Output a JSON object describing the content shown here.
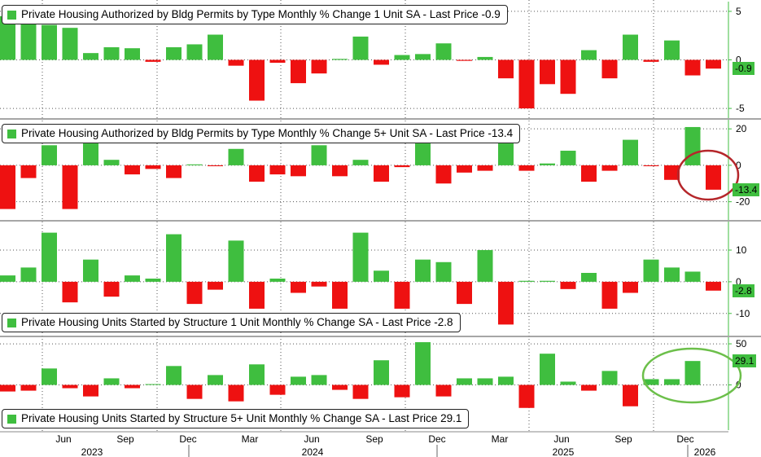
{
  "colors": {
    "positive": "#3fbe3f",
    "negative": "#ee1111",
    "axis": "#3fbe3f",
    "grid": "#555555",
    "annotation_red": "#b5262a",
    "annotation_green": "#6cbf4a"
  },
  "x_axis": {
    "month_labels": [
      "Jun",
      "Sep",
      "Dec",
      "Mar",
      "Jun",
      "Sep",
      "Dec",
      "Mar",
      "Jun",
      "Sep",
      "Dec"
    ],
    "year_labels": [
      "2023",
      "2024",
      "2025",
      "2026"
    ]
  },
  "chart_data": [
    {
      "type": "bar",
      "title": "Private Housing Authorized by Bldg Permits by Type Monthly % Change 1 Unit SA - Last Price -0.9",
      "swatch": "legend-swatch",
      "last_price_label": "-0.9",
      "last_price_value": -0.9,
      "ylim": [
        -6,
        6
      ],
      "yticks": [
        5,
        0,
        -5
      ],
      "ytick_labels": [
        "5",
        "0",
        "-5"
      ],
      "values": [
        4.5,
        4.2,
        3.6,
        3.3,
        0.7,
        1.3,
        1.2,
        -0.2,
        1.3,
        1.6,
        2.6,
        -0.6,
        -4.2,
        -0.3,
        -2.4,
        -1.4,
        0.1,
        2.4,
        -0.5,
        0.5,
        0.6,
        1.7,
        -0.1,
        0.3,
        -1.9,
        -5.0,
        -2.5,
        -3.5,
        1.0,
        -1.9,
        2.6,
        -0.2,
        2.0,
        -1.6,
        -0.9
      ]
    },
    {
      "type": "bar",
      "title": "Private Housing Authorized by Bldg Permits by Type Monthly % Change 5+ Unit SA - Last Price -13.4",
      "last_price_label": "-13.4",
      "last_price_value": -13.4,
      "ylim": [
        -30,
        25
      ],
      "yticks": [
        20,
        0,
        -20
      ],
      "ytick_labels": [
        "20",
        "0",
        "-20"
      ],
      "values": [
        -24,
        -7,
        11,
        -24,
        12,
        3,
        -5,
        -2,
        -7,
        0.5,
        -0.5,
        9,
        -9,
        -5,
        -6,
        11,
        -6,
        3,
        -9,
        -1,
        12,
        -10,
        -4,
        -3,
        12,
        -3,
        1,
        8,
        -9,
        -3,
        14,
        -0.5,
        -8,
        21,
        -13.4
      ]
    },
    {
      "type": "bar",
      "title": "Private Housing Units Started by Structure 1 Unit Monthly % Change SA - Last Price -2.8",
      "last_price_label": "-2.8",
      "last_price_value": -2.8,
      "ylim": [
        -17,
        19
      ],
      "yticks": [
        10,
        0,
        -10
      ],
      "ytick_labels": [
        "10",
        "0",
        "-10"
      ],
      "values": [
        2,
        4.5,
        15.5,
        -6.5,
        7,
        -4.7,
        2,
        1,
        15,
        -7,
        -2.5,
        13,
        -8.5,
        1,
        -3.5,
        -1.5,
        -8.5,
        15.5,
        3.5,
        -8.5,
        7,
        6.2,
        -7,
        10,
        -13.5,
        0.3,
        0.3,
        -2.3,
        2.8,
        -8.5,
        -3.5,
        7,
        4.5,
        3.2,
        -2.8
      ]
    },
    {
      "type": "bar",
      "title": "Private Housing Units Started by Structure 5+ Unit Monthly % Change SA - Last Price 29.1",
      "last_price_label": "29.1",
      "last_price_value": 29.1,
      "ylim": [
        -55,
        58
      ],
      "yticks": [
        50,
        0
      ],
      "ytick_labels": [
        "50",
        "0"
      ],
      "values": [
        -8,
        -7,
        20,
        -4,
        -14,
        8,
        -4,
        1,
        23,
        -17,
        12,
        -20,
        25,
        -12,
        10,
        12,
        -6,
        -17,
        30,
        -15,
        52,
        -14,
        8,
        8,
        10,
        -28,
        38,
        4,
        -7,
        17,
        -26,
        7,
        7,
        29.1
      ]
    }
  ]
}
